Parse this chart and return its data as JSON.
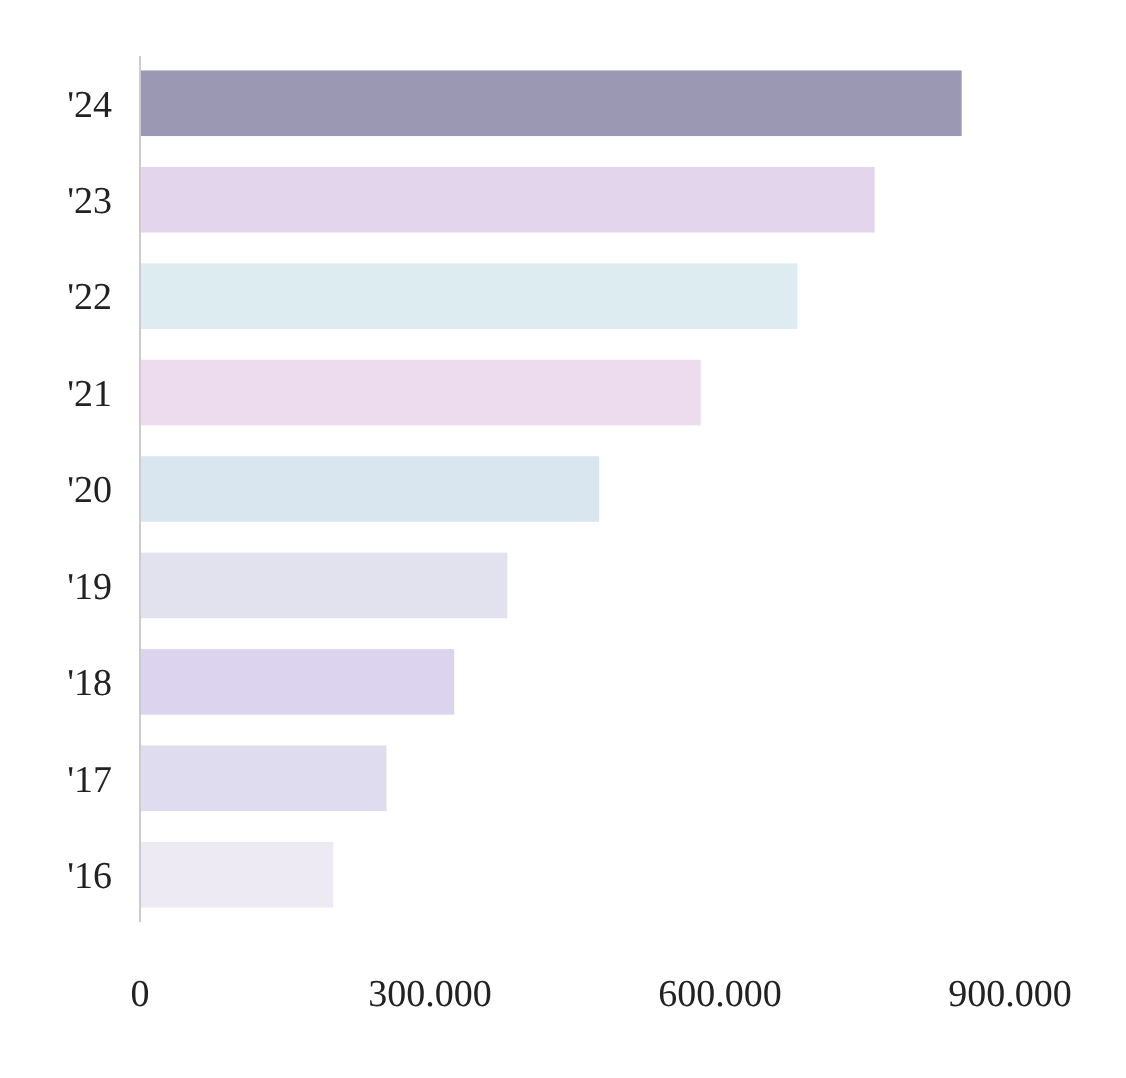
{
  "chart_data": {
    "type": "bar",
    "orientation": "horizontal",
    "categories": [
      "'24",
      "'23",
      "'22",
      "'21",
      "'20",
      "'19",
      "'18",
      "'17",
      "'16"
    ],
    "values": [
      850000,
      760000,
      680000,
      580000,
      475000,
      380000,
      325000,
      255000,
      200000
    ],
    "colors": [
      "#9b98b4",
      "#e3d6ec",
      "#dcecf0",
      "#ecdcee",
      "#d9e6f0",
      "#e2e2ee",
      "#dcd4ee",
      "#e0dcf0",
      "#eeeaf4"
    ],
    "xlim": [
      0,
      900000
    ],
    "xticks": [
      0,
      {
        "value": 300000,
        "label": "300.000"
      },
      {
        "value": 600000,
        "label": "600.000"
      },
      {
        "value": 900000,
        "label": "900.000"
      }
    ],
    "grid": false
  }
}
